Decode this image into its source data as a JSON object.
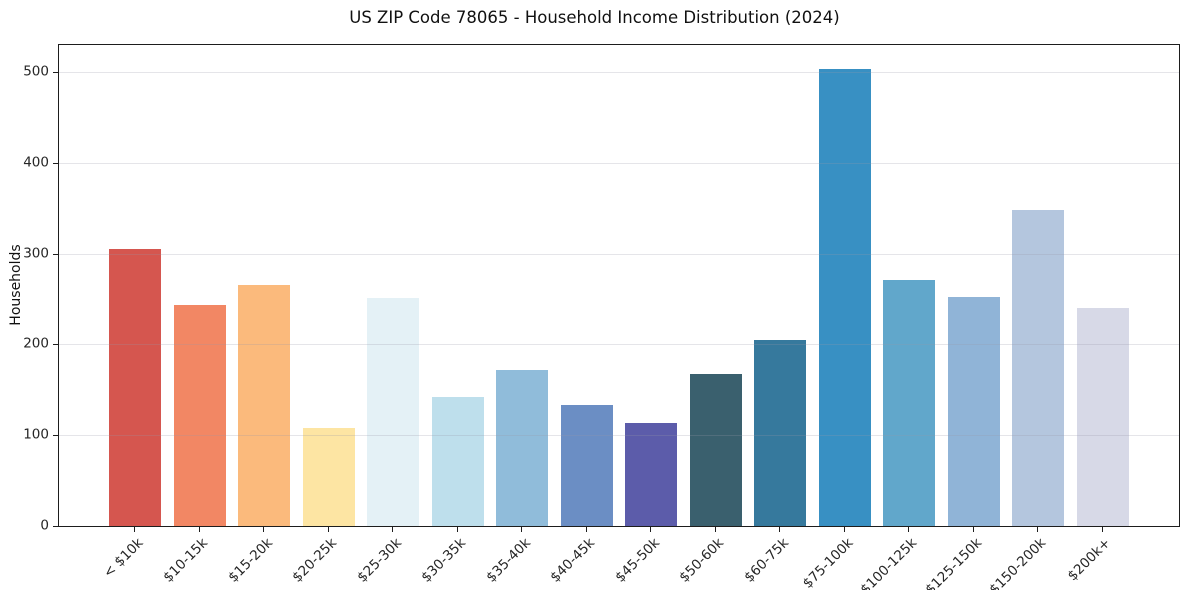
{
  "chart_data": {
    "type": "bar",
    "title": "US ZIP Code 78065 - Household Income Distribution (2024)",
    "xlabel": "",
    "ylabel": "Households",
    "categories": [
      "< $10k",
      "$10-15k",
      "$15-20k",
      "$20-25k",
      "$25-30k",
      "$30-35k",
      "$35-40k",
      "$40-45k",
      "$45-50k",
      "$50-60k",
      "$60-75k",
      "$75-100k",
      "$100-125k",
      "$125-150k",
      "$150-200k",
      "$200k+"
    ],
    "values": [
      305,
      243,
      266,
      108,
      251,
      142,
      172,
      133,
      113,
      167,
      205,
      504,
      271,
      252,
      348,
      240
    ],
    "bar_colors": [
      "#d5564f",
      "#f28764",
      "#fbba7c",
      "#fde5a3",
      "#e4f1f6",
      "#bedfec",
      "#90bcda",
      "#6b8ec4",
      "#5c5caa",
      "#3a606e",
      "#36799d",
      "#3890c3",
      "#61a7cb",
      "#90b4d7",
      "#b4c6de",
      "#d7d9e7"
    ],
    "ylim": [
      0,
      530
    ],
    "yticks": [
      0,
      100,
      200,
      300,
      400,
      500
    ],
    "grid": "horizontal",
    "gridline_color": "#e8e9ed",
    "spine_color": "#1d1d1d",
    "background": "#ffffff",
    "bar_width_fraction": 0.8,
    "x_tick_label_rotation_deg": 45,
    "legend": "none"
  }
}
